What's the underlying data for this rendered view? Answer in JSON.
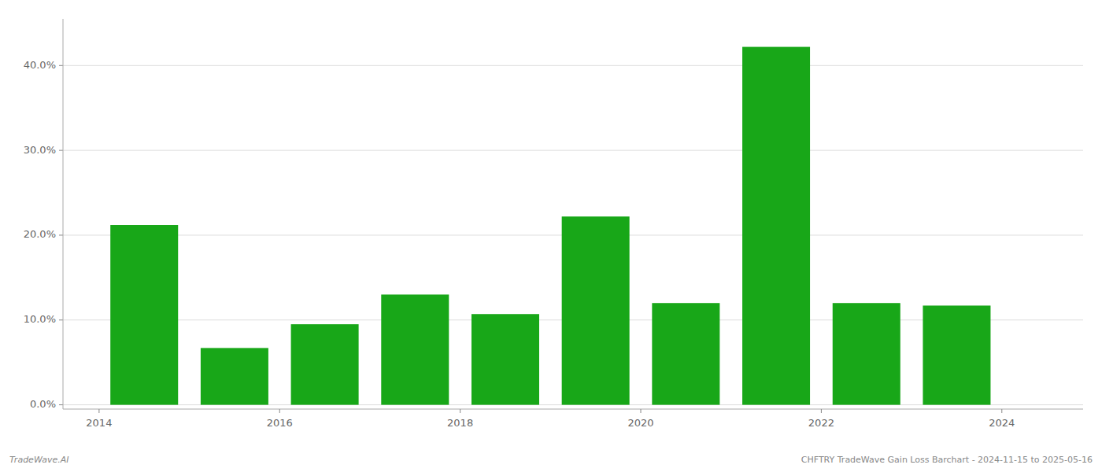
{
  "chart_data": {
    "type": "bar",
    "x": [
      2014,
      2015,
      2016,
      2017,
      2018,
      2019,
      2020,
      2021,
      2022,
      2023
    ],
    "values": [
      0.212,
      0.067,
      0.095,
      0.13,
      0.107,
      0.222,
      0.12,
      0.422,
      0.12,
      0.117
    ],
    "color": "#18a718",
    "xlim": [
      2013.1,
      2024.4
    ],
    "xticks": [
      {
        "value": 2013.5,
        "label": "2014"
      },
      {
        "value": 2015.5,
        "label": "2016"
      },
      {
        "value": 2017.5,
        "label": "2018"
      },
      {
        "value": 2019.5,
        "label": "2020"
      },
      {
        "value": 2021.5,
        "label": "2022"
      },
      {
        "value": 2023.5,
        "label": "2024"
      }
    ],
    "ylim": [
      -0.005,
      0.455
    ],
    "yticks": [
      {
        "value": 0.0,
        "label": "0.0%"
      },
      {
        "value": 0.1,
        "label": "10.0%"
      },
      {
        "value": 0.2,
        "label": "20.0%"
      },
      {
        "value": 0.3,
        "label": "30.0%"
      },
      {
        "value": 0.4,
        "label": "40.0%"
      }
    ],
    "grid": true,
    "annotations": [
      "TradeWave.AI",
      "CHFTRY TradeWave Gain Loss Barchart - 2024-11-15 to 2025-05-16"
    ]
  }
}
